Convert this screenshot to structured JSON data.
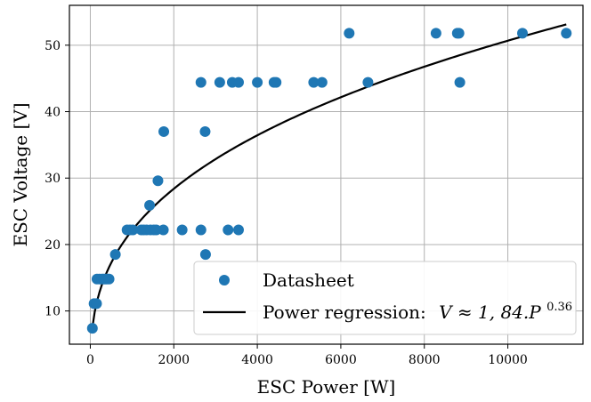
{
  "chart_data": {
    "type": "scatter",
    "xlabel": "ESC Power [W]",
    "ylabel": "ESC Voltage [V]",
    "xlim": [
      -500,
      11800
    ],
    "ylim": [
      5,
      56
    ],
    "x_ticks": [
      0,
      2000,
      4000,
      6000,
      8000,
      10000
    ],
    "y_ticks": [
      10,
      20,
      30,
      40,
      50
    ],
    "x_tick_labels": [
      "0",
      "2000",
      "4000",
      "6000",
      "8000",
      "10000"
    ],
    "y_tick_labels": [
      "10",
      "20",
      "30",
      "40",
      "50"
    ],
    "grid": true,
    "legend_position": "bottom-right",
    "colors": {
      "scatter": "#1f77b4",
      "line": "#000000"
    },
    "series": [
      {
        "name": "Datasheet",
        "kind": "scatter",
        "points": [
          [
            50,
            7.4
          ],
          [
            90,
            11.1
          ],
          [
            150,
            11.1
          ],
          [
            160,
            14.8
          ],
          [
            220,
            14.8
          ],
          [
            280,
            14.8
          ],
          [
            320,
            14.8
          ],
          [
            360,
            14.8
          ],
          [
            400,
            14.8
          ],
          [
            450,
            14.8
          ],
          [
            600,
            18.5
          ],
          [
            880,
            22.2
          ],
          [
            950,
            22.2
          ],
          [
            1020,
            22.2
          ],
          [
            1220,
            22.2
          ],
          [
            1280,
            22.2
          ],
          [
            1350,
            22.2
          ],
          [
            1440,
            22.2
          ],
          [
            1520,
            22.2
          ],
          [
            1580,
            22.2
          ],
          [
            1750,
            22.2
          ],
          [
            2200,
            22.2
          ],
          [
            2650,
            22.2
          ],
          [
            3300,
            22.2
          ],
          [
            3550,
            22.2
          ],
          [
            1420,
            25.9
          ],
          [
            1620,
            29.6
          ],
          [
            1760,
            37.0
          ],
          [
            2750,
            37.0
          ],
          [
            2760,
            18.5
          ],
          [
            2650,
            44.4
          ],
          [
            3100,
            44.4
          ],
          [
            3400,
            44.4
          ],
          [
            3550,
            44.4
          ],
          [
            4000,
            44.4
          ],
          [
            4400,
            44.4
          ],
          [
            4450,
            44.4
          ],
          [
            5350,
            44.4
          ],
          [
            5550,
            44.4
          ],
          [
            6650,
            44.4
          ],
          [
            8850,
            44.4
          ],
          [
            6200,
            51.8
          ],
          [
            8280,
            51.8
          ],
          [
            8790,
            51.8
          ],
          [
            8830,
            51.8
          ],
          [
            10350,
            51.8
          ],
          [
            11400,
            51.8
          ]
        ]
      },
      {
        "name": "Power regression:",
        "kind": "line",
        "equation": "V ≈ 1, 84.P",
        "exponent": "0.36",
        "coefficient": 1.84,
        "power": 0.36,
        "x_range": [
          50,
          11400
        ]
      }
    ]
  }
}
